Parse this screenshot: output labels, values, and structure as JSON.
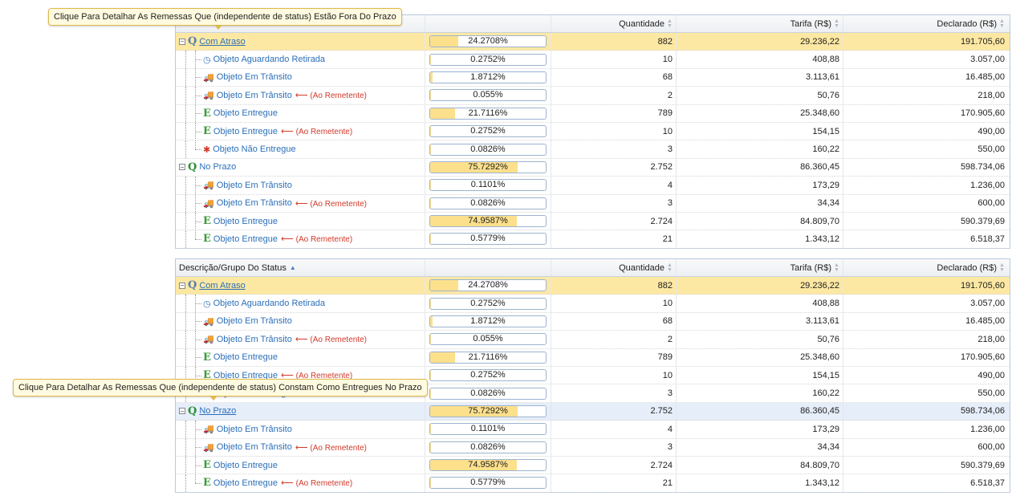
{
  "headers": {
    "desc": "Descrição/Grupo Do Status",
    "pct": "",
    "qty": "Quantidade",
    "tar": "Tarifa (R$)",
    "dec": "Declarado (R$)"
  },
  "tooltips": {
    "top": "Clique Para Detalhar As Remessas Que (independente de status) Estão Fora Do Prazo",
    "bottom": "Clique Para Detalhar As Remessas Que (independente de status) Constam Como Entregues No Prazo"
  },
  "return_label": "(Ao Remetente)",
  "grid1": [
    {
      "type": "group",
      "style": "warn",
      "icon": "Q",
      "link": true,
      "label": "Com Atraso",
      "pct": "24.2708%",
      "fill": 0.242708,
      "qty": "882",
      "tar": "29.236,22",
      "dec": "191.705,60"
    },
    {
      "type": "item",
      "icon": "clock-icon",
      "label": "Objeto Aguardando Retirada",
      "ret": false,
      "pct": "0.2752%",
      "fill": 0.002752,
      "qty": "10",
      "tar": "408,88",
      "dec": "3.057,00"
    },
    {
      "type": "item",
      "icon": "truck-icon",
      "label": "Objeto Em Trânsito",
      "ret": false,
      "pct": "1.8712%",
      "fill": 0.018712,
      "qty": "68",
      "tar": "3.113,61",
      "dec": "16.485,00"
    },
    {
      "type": "item",
      "icon": "truck-icon",
      "label": "Objeto Em Trânsito",
      "ret": true,
      "pct": "0.055%",
      "fill": 0.00055,
      "qty": "2",
      "tar": "50,76",
      "dec": "218,00"
    },
    {
      "type": "item",
      "icon": "delivered-icon",
      "label": "Objeto Entregue",
      "ret": false,
      "pct": "21.7116%",
      "fill": 0.217116,
      "qty": "789",
      "tar": "25.348,60",
      "dec": "170.905,60"
    },
    {
      "type": "item",
      "icon": "delivered-icon",
      "label": "Objeto Entregue",
      "ret": true,
      "pct": "0.2752%",
      "fill": 0.002752,
      "qty": "10",
      "tar": "154,15",
      "dec": "490,00"
    },
    {
      "type": "item",
      "icon": "bug-icon",
      "label": "Objeto Não Entregue",
      "ret": false,
      "last": true,
      "pct": "0.0826%",
      "fill": 0.000826,
      "qty": "3",
      "tar": "160,22",
      "dec": "550,00"
    },
    {
      "type": "group",
      "style": "ok",
      "icon": "Q",
      "link": false,
      "label": "No Prazo",
      "pct": "75.7292%",
      "fill": 0.757292,
      "qty": "2.752",
      "tar": "86.360,45",
      "dec": "598.734,06"
    },
    {
      "type": "item",
      "icon": "truck-icon",
      "label": "Objeto Em Trânsito",
      "ret": false,
      "pct": "0.1101%",
      "fill": 0.001101,
      "qty": "4",
      "tar": "173,29",
      "dec": "1.236,00"
    },
    {
      "type": "item",
      "icon": "truck-icon",
      "label": "Objeto Em Trânsito",
      "ret": true,
      "pct": "0.0826%",
      "fill": 0.000826,
      "qty": "3",
      "tar": "34,34",
      "dec": "600,00"
    },
    {
      "type": "item",
      "icon": "delivered-icon",
      "label": "Objeto Entregue",
      "ret": false,
      "pct": "74.9587%",
      "fill": 0.749587,
      "qty": "2.724",
      "tar": "84.809,70",
      "dec": "590.379,69"
    },
    {
      "type": "item",
      "icon": "delivered-icon",
      "label": "Objeto Entregue",
      "ret": true,
      "last": true,
      "pct": "0.5779%",
      "fill": 0.005779,
      "qty": "21",
      "tar": "1.343,12",
      "dec": "6.518,37"
    }
  ],
  "grid2": [
    {
      "type": "group",
      "style": "warn",
      "icon": "Q",
      "link": true,
      "label": "Com Atraso",
      "pct": "24.2708%",
      "fill": 0.242708,
      "qty": "882",
      "tar": "29.236,22",
      "dec": "191.705,60"
    },
    {
      "type": "item",
      "icon": "clock-icon",
      "label": "Objeto Aguardando Retirada",
      "ret": false,
      "pct": "0.2752%",
      "fill": 0.002752,
      "qty": "10",
      "tar": "408,88",
      "dec": "3.057,00"
    },
    {
      "type": "item",
      "icon": "truck-icon",
      "label": "Objeto Em Trânsito",
      "ret": false,
      "pct": "1.8712%",
      "fill": 0.018712,
      "qty": "68",
      "tar": "3.113,61",
      "dec": "16.485,00"
    },
    {
      "type": "item",
      "icon": "truck-icon",
      "label": "Objeto Em Trânsito",
      "ret": true,
      "pct": "0.055%",
      "fill": 0.00055,
      "qty": "2",
      "tar": "50,76",
      "dec": "218,00"
    },
    {
      "type": "item",
      "icon": "delivered-icon",
      "label": "Objeto Entregue",
      "ret": false,
      "pct": "21.7116%",
      "fill": 0.217116,
      "qty": "789",
      "tar": "25.348,60",
      "dec": "170.905,60"
    },
    {
      "type": "item",
      "icon": "delivered-icon",
      "label": "Objeto Entregue",
      "ret": true,
      "pct": "0.2752%",
      "fill": 0.002752,
      "qty": "10",
      "tar": "154,15",
      "dec": "490,00"
    },
    {
      "type": "item",
      "icon": "bug-icon",
      "label": "Objeto Não Entregue",
      "ret": false,
      "last": true,
      "pct": "0.0826%",
      "fill": 0.000826,
      "qty": "3",
      "tar": "160,22",
      "dec": "550,00"
    },
    {
      "type": "group",
      "style": "hl",
      "icon": "Q",
      "link": true,
      "label": "No Prazo",
      "pct": "75.7292%",
      "fill": 0.757292,
      "qty": "2.752",
      "tar": "86.360,45",
      "dec": "598.734,06"
    },
    {
      "type": "item",
      "icon": "truck-icon",
      "label": "Objeto Em Trânsito",
      "ret": false,
      "pct": "0.1101%",
      "fill": 0.001101,
      "qty": "4",
      "tar": "173,29",
      "dec": "1.236,00"
    },
    {
      "type": "item",
      "icon": "truck-icon",
      "label": "Objeto Em Trânsito",
      "ret": true,
      "pct": "0.0826%",
      "fill": 0.000826,
      "qty": "3",
      "tar": "34,34",
      "dec": "600,00"
    },
    {
      "type": "item",
      "icon": "delivered-icon",
      "label": "Objeto Entregue",
      "ret": false,
      "pct": "74.9587%",
      "fill": 0.749587,
      "qty": "2.724",
      "tar": "84.809,70",
      "dec": "590.379,69"
    },
    {
      "type": "item",
      "icon": "delivered-icon",
      "label": "Objeto Entregue",
      "ret": true,
      "last": true,
      "pct": "0.5779%",
      "fill": 0.005779,
      "qty": "21",
      "tar": "1.343,12",
      "dec": "6.518,37"
    }
  ]
}
